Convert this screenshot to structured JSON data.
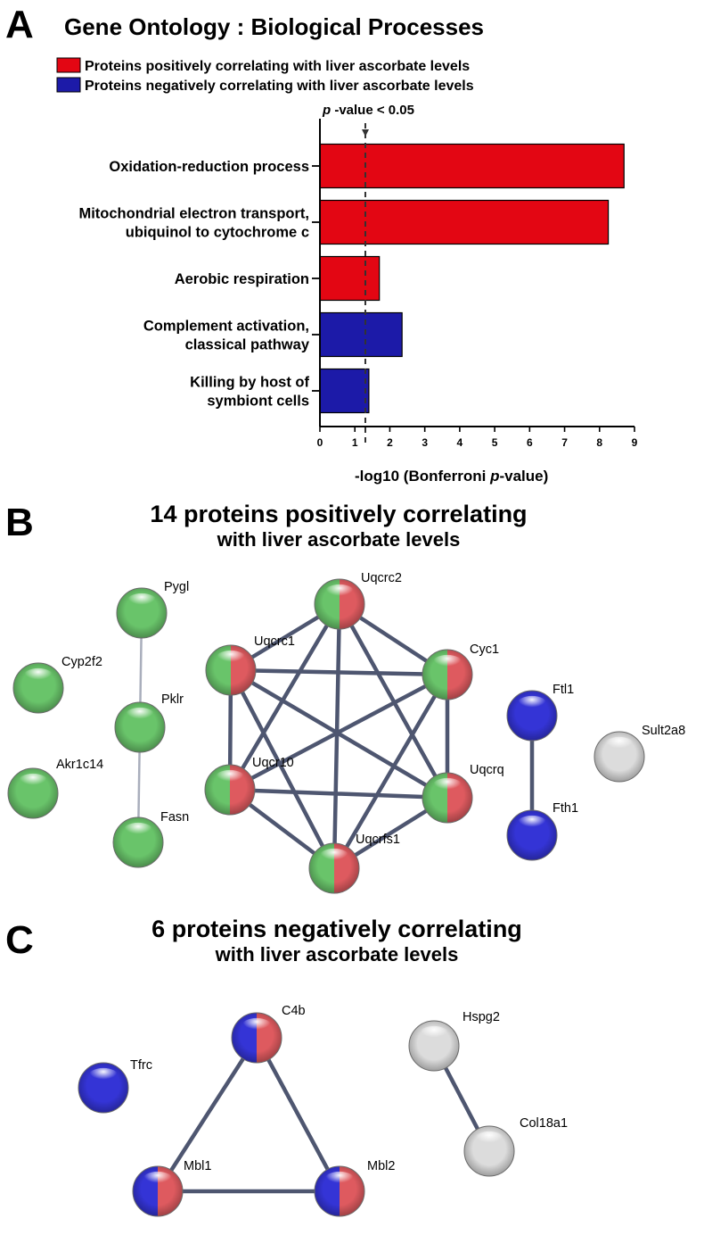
{
  "panels": {
    "a": {
      "letter": "A"
    },
    "b": {
      "letter": "B",
      "title": "14 proteins positively correlating",
      "subtitle": "with liver ascorbate levels"
    },
    "c": {
      "letter": "C",
      "title": "6 proteins negatively correlating",
      "subtitle": "with liver ascorbate levels"
    }
  },
  "chart_data": {
    "type": "bar",
    "orientation": "horizontal",
    "title": "Gene Ontology : Biological Processes",
    "legend": [
      {
        "label": "Proteins positively correlating with liver ascorbate levels",
        "color": "#e30613"
      },
      {
        "label": "Proteins negatively correlating with liver ascorbate levels",
        "color": "#1c1aa8"
      }
    ],
    "legend_placement": "top-left",
    "categories": [
      [
        "Oxidation-reduction process"
      ],
      [
        "Mitochondrial electron transport,",
        "ubiquinol to cytochrome c"
      ],
      [
        "Aerobic respiration"
      ],
      [
        "Complement activation,",
        "classical pathway"
      ],
      [
        "Killing by host of",
        "symbiont cells"
      ]
    ],
    "values": [
      8.7,
      8.25,
      1.7,
      2.35,
      1.4
    ],
    "bar_groups": [
      "positive",
      "positive",
      "positive",
      "negative",
      "negative"
    ],
    "xlabel_parts": [
      "-log10 (Bonferroni ",
      "p",
      "-value)"
    ],
    "xlim": [
      0,
      9
    ],
    "xticks": [
      0,
      1,
      2,
      3,
      4,
      5,
      6,
      7,
      8,
      9
    ],
    "threshold": {
      "value": 1.3,
      "label_italic": "p",
      "label_rest": " -value < 0.05"
    },
    "grid": false
  },
  "network_b": {
    "nodes": [
      {
        "id": "Pygl",
        "label": "Pygl",
        "colors": [
          "green"
        ]
      },
      {
        "id": "Cyp2f2",
        "label": "Cyp2f2",
        "colors": [
          "green"
        ]
      },
      {
        "id": "Pklr",
        "label": "Pklr",
        "colors": [
          "green"
        ]
      },
      {
        "id": "Akr1c14",
        "label": "Akr1c14",
        "colors": [
          "green"
        ]
      },
      {
        "id": "Fasn",
        "label": "Fasn",
        "colors": [
          "green"
        ]
      },
      {
        "id": "Uqcrc2",
        "label": "Uqcrc2",
        "colors": [
          "green",
          "red"
        ]
      },
      {
        "id": "Uqcrc1",
        "label": "Uqcrc1",
        "colors": [
          "green",
          "red"
        ]
      },
      {
        "id": "Cyc1",
        "label": "Cyc1",
        "colors": [
          "green",
          "red"
        ]
      },
      {
        "id": "Uqcr10",
        "label": "Uqcr10",
        "colors": [
          "green",
          "red"
        ]
      },
      {
        "id": "Uqcrq",
        "label": "Uqcrq",
        "colors": [
          "green",
          "red"
        ]
      },
      {
        "id": "Uqcrfs1",
        "label": "Uqcrfs1",
        "colors": [
          "green",
          "red"
        ]
      },
      {
        "id": "Ftl1",
        "label": "Ftl1",
        "colors": [
          "blue"
        ]
      },
      {
        "id": "Fth1",
        "label": "Fth1",
        "colors": [
          "blue"
        ]
      },
      {
        "id": "Sult2a8",
        "label": "Sult2a8",
        "colors": [
          "white"
        ]
      }
    ],
    "edges": [
      [
        "Pygl",
        "Pklr"
      ],
      [
        "Pklr",
        "Fasn"
      ],
      [
        "Ftl1",
        "Fth1"
      ],
      [
        "Uqcrc2",
        "Uqcrc1"
      ],
      [
        "Uqcrc2",
        "Cyc1"
      ],
      [
        "Uqcrc2",
        "Uqcr10"
      ],
      [
        "Uqcrc2",
        "Uqcrq"
      ],
      [
        "Uqcrc2",
        "Uqcrfs1"
      ],
      [
        "Uqcrc1",
        "Cyc1"
      ],
      [
        "Uqcrc1",
        "Uqcr10"
      ],
      [
        "Uqcrc1",
        "Uqcrq"
      ],
      [
        "Uqcrc1",
        "Uqcrfs1"
      ],
      [
        "Cyc1",
        "Uqcr10"
      ],
      [
        "Cyc1",
        "Uqcrq"
      ],
      [
        "Cyc1",
        "Uqcrfs1"
      ],
      [
        "Uqcr10",
        "Uqcrq"
      ],
      [
        "Uqcr10",
        "Uqcrfs1"
      ],
      [
        "Uqcrq",
        "Uqcrfs1"
      ]
    ]
  },
  "network_c": {
    "nodes": [
      {
        "id": "C4b",
        "label": "C4b",
        "colors": [
          "blue",
          "red"
        ]
      },
      {
        "id": "Tfrc",
        "label": "Tfrc",
        "colors": [
          "blue"
        ]
      },
      {
        "id": "Mbl1",
        "label": "Mbl1",
        "colors": [
          "blue",
          "red"
        ]
      },
      {
        "id": "Mbl2",
        "label": "Mbl2",
        "colors": [
          "blue",
          "red"
        ]
      },
      {
        "id": "Hspg2",
        "label": "Hspg2",
        "colors": [
          "white"
        ]
      },
      {
        "id": "Col18a1",
        "label": "Col18a1",
        "colors": [
          "white"
        ]
      }
    ],
    "edges": [
      [
        "C4b",
        "Mbl1"
      ],
      [
        "C4b",
        "Mbl2"
      ],
      [
        "Mbl1",
        "Mbl2"
      ],
      [
        "Hspg2",
        "Col18a1"
      ]
    ]
  },
  "node_palette": {
    "green": "#69c46a",
    "red": "#de5a5f",
    "blue": "#3434d6",
    "white": "#dcdcdc"
  },
  "edge_colors": {
    "dark": "#4e5670",
    "light": "#a9aebc"
  }
}
